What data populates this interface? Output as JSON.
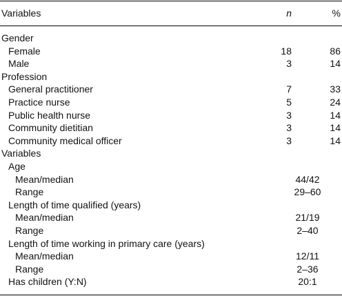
{
  "header": {
    "variable": "Variables",
    "n": "n",
    "pct": "%"
  },
  "sections": [
    {
      "title": "Gender",
      "rows": [
        {
          "label": "Female",
          "n": 18,
          "pct": 86
        },
        {
          "label": "Male",
          "n": 3,
          "pct": 14
        }
      ]
    },
    {
      "title": "Profession",
      "rows": [
        {
          "label": "General practitioner",
          "n": 7,
          "pct": 33
        },
        {
          "label": "Practice nurse",
          "n": 5,
          "pct": 24
        },
        {
          "label": "Public health nurse",
          "n": 3,
          "pct": 14
        },
        {
          "label": "Community dietitian",
          "n": 3,
          "pct": 14
        },
        {
          "label": "Community medical officer",
          "n": 3,
          "pct": 14
        }
      ]
    },
    {
      "title": "Variables",
      "groups": [
        {
          "title": "Age",
          "rows": [
            {
              "label": "Mean/median",
              "value": "44/42"
            },
            {
              "label": "Range",
              "value": "29–60"
            }
          ]
        },
        {
          "title": "Length of time qualified (years)",
          "rows": [
            {
              "label": "Mean/median",
              "value": "21/19"
            },
            {
              "label": "Range",
              "value": "2–40"
            }
          ]
        },
        {
          "title": "Length of time working in primary care (years)",
          "rows": [
            {
              "label": "Mean/median",
              "value": "12/11"
            },
            {
              "label": "Range",
              "value": "2–36"
            }
          ]
        },
        {
          "title": "Has children (Y:N)",
          "value": "20:1"
        }
      ]
    }
  ]
}
